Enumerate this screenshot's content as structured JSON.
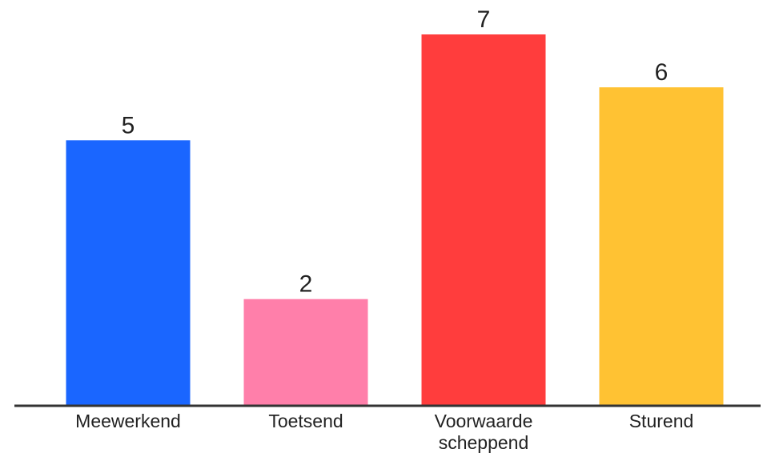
{
  "chart_data": {
    "type": "bar",
    "categories": [
      "Meewerkend",
      "Toetsend",
      "Voorwaarde scheppend",
      "Sturend"
    ],
    "category_lines": [
      [
        "Meewerkend"
      ],
      [
        "Toetsend"
      ],
      [
        "Voorwaarde",
        "scheppend"
      ],
      [
        "Sturend"
      ]
    ],
    "values": [
      5,
      2,
      7,
      6
    ],
    "data_labels": [
      "5",
      "2",
      "7",
      "6"
    ],
    "colors": [
      "#1a66ff",
      "#ff7faa",
      "#ff3d3d",
      "#ffc233"
    ],
    "axis_color": "#333333",
    "ylim": [
      0,
      7
    ],
    "grid": false,
    "legend": "none"
  }
}
